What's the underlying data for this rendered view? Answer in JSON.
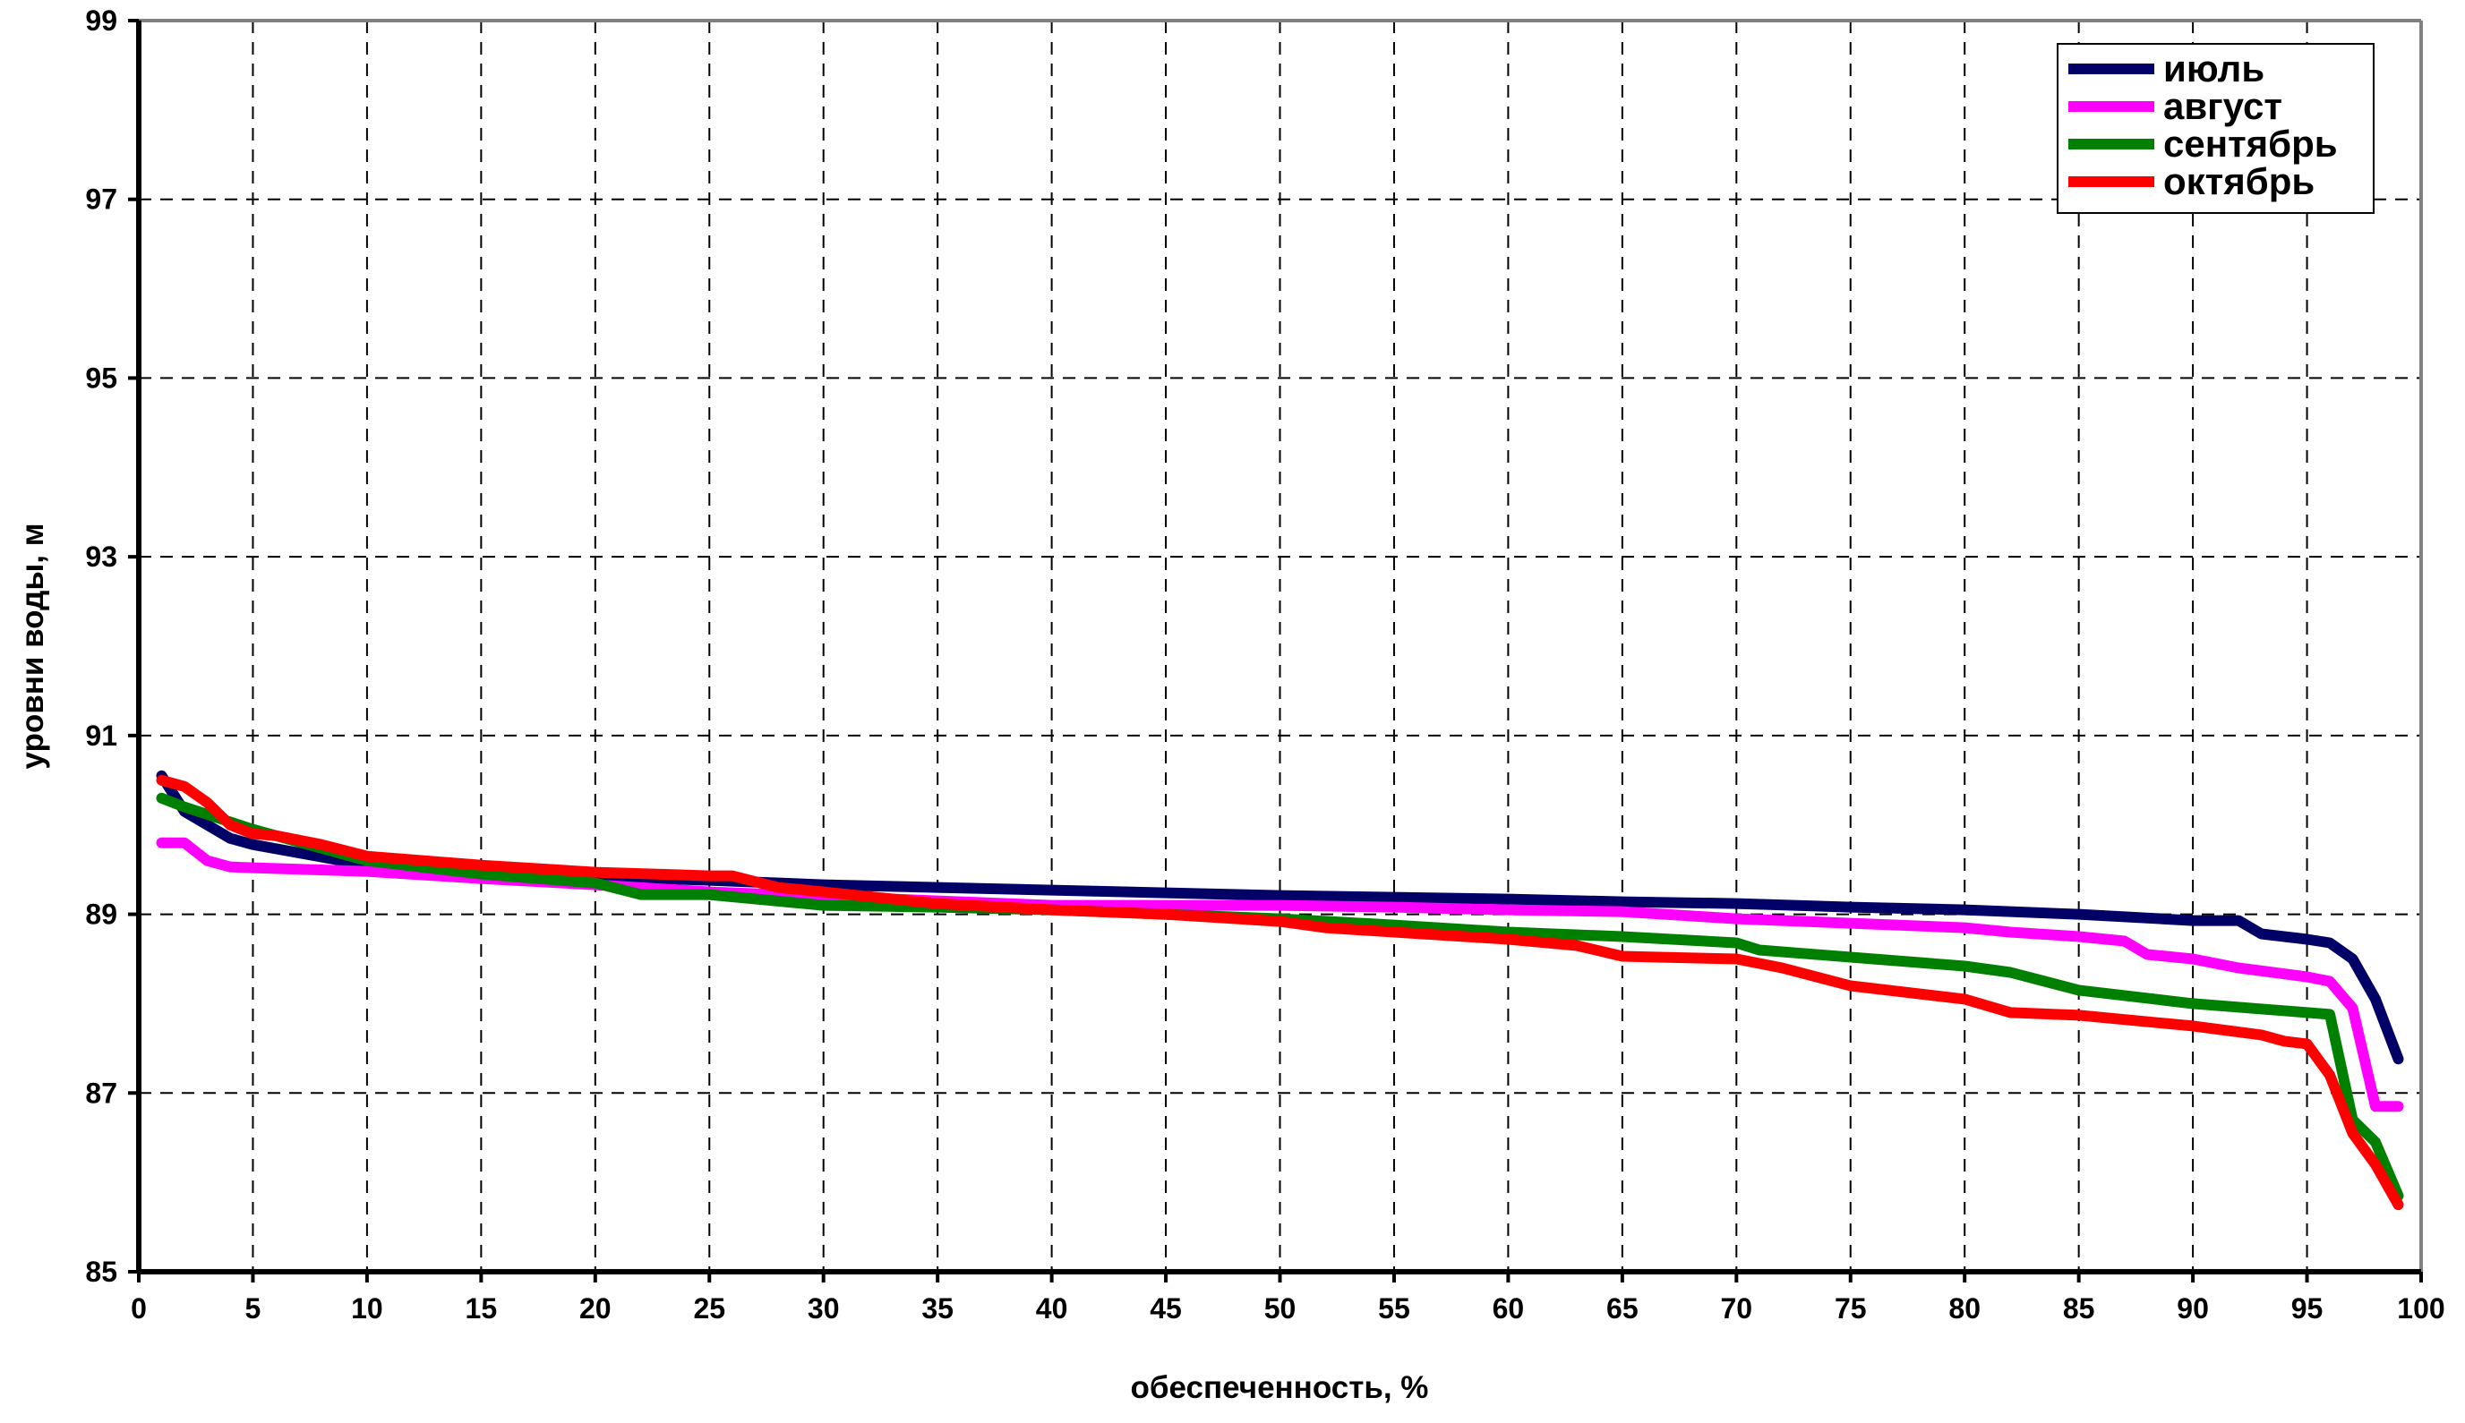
{
  "chart_data": {
    "type": "line",
    "title": "",
    "xlabel": "обеспеченность, %",
    "ylabel": "уровни воды, м",
    "xlim": [
      0,
      100
    ],
    "ylim": [
      85,
      99
    ],
    "xticks": [
      0,
      5,
      10,
      15,
      20,
      25,
      30,
      35,
      40,
      45,
      50,
      55,
      60,
      65,
      70,
      75,
      80,
      85,
      90,
      95,
      100
    ],
    "yticks": [
      85,
      87,
      89,
      91,
      93,
      95,
      97,
      99
    ],
    "grid": true,
    "legend_position": "top-right",
    "series": [
      {
        "name": "июль",
        "color": "#000066",
        "x": [
          1,
          2,
          3,
          4,
          5,
          10,
          15,
          20,
          25,
          30,
          35,
          40,
          45,
          50,
          55,
          60,
          65,
          70,
          75,
          80,
          85,
          90,
          92,
          93,
          95,
          96,
          97,
          98,
          99
        ],
        "y": [
          90.55,
          90.15,
          90.0,
          89.85,
          89.78,
          89.55,
          89.5,
          89.42,
          89.38,
          89.33,
          89.3,
          89.27,
          89.24,
          89.21,
          89.19,
          89.17,
          89.14,
          89.12,
          89.08,
          89.05,
          89.0,
          88.93,
          88.93,
          88.78,
          88.72,
          88.68,
          88.5,
          88.05,
          87.38
        ]
      },
      {
        "name": "август",
        "color": "#FF00FF",
        "x": [
          1,
          2,
          3,
          4,
          5,
          10,
          15,
          20,
          25,
          30,
          35,
          40,
          45,
          50,
          55,
          60,
          65,
          70,
          75,
          80,
          82,
          85,
          87,
          88,
          90,
          92,
          95,
          96,
          97,
          98,
          99
        ],
        "y": [
          89.8,
          89.8,
          89.6,
          89.53,
          89.52,
          89.48,
          89.4,
          89.33,
          89.25,
          89.2,
          89.15,
          89.1,
          89.1,
          89.1,
          89.08,
          89.05,
          89.03,
          88.95,
          88.9,
          88.85,
          88.8,
          88.75,
          88.7,
          88.55,
          88.5,
          88.4,
          88.3,
          88.25,
          87.95,
          86.85,
          86.85
        ]
      },
      {
        "name": "сентябрь",
        "color": "#008000",
        "x": [
          1,
          2,
          5,
          10,
          15,
          20,
          22,
          25,
          30,
          35,
          40,
          45,
          50,
          55,
          60,
          65,
          70,
          71,
          75,
          80,
          82,
          85,
          90,
          95,
          96,
          97,
          98,
          99
        ],
        "y": [
          90.3,
          90.2,
          89.95,
          89.6,
          89.45,
          89.35,
          89.22,
          89.22,
          89.1,
          89.08,
          89.05,
          89.0,
          88.95,
          88.88,
          88.8,
          88.75,
          88.68,
          88.6,
          88.52,
          88.42,
          88.35,
          88.15,
          88.0,
          87.9,
          87.88,
          86.7,
          86.45,
          85.85
        ]
      },
      {
        "name": "октябрь",
        "color": "#FF0000",
        "x": [
          1,
          2,
          3,
          4,
          5,
          6,
          8,
          10,
          15,
          20,
          25,
          26,
          28,
          30,
          35,
          40,
          45,
          50,
          52,
          55,
          60,
          63,
          65,
          70,
          72,
          75,
          80,
          82,
          85,
          90,
          93,
          94,
          95,
          96,
          97,
          98,
          99
        ],
        "y": [
          90.5,
          90.43,
          90.25,
          90.0,
          89.9,
          89.88,
          89.78,
          89.65,
          89.55,
          89.47,
          89.43,
          89.43,
          89.3,
          89.25,
          89.12,
          89.05,
          89.0,
          88.92,
          88.85,
          88.8,
          88.72,
          88.65,
          88.53,
          88.5,
          88.4,
          88.2,
          88.05,
          87.9,
          87.87,
          87.75,
          87.65,
          87.58,
          87.55,
          87.2,
          86.55,
          86.2,
          85.75
        ]
      }
    ]
  }
}
